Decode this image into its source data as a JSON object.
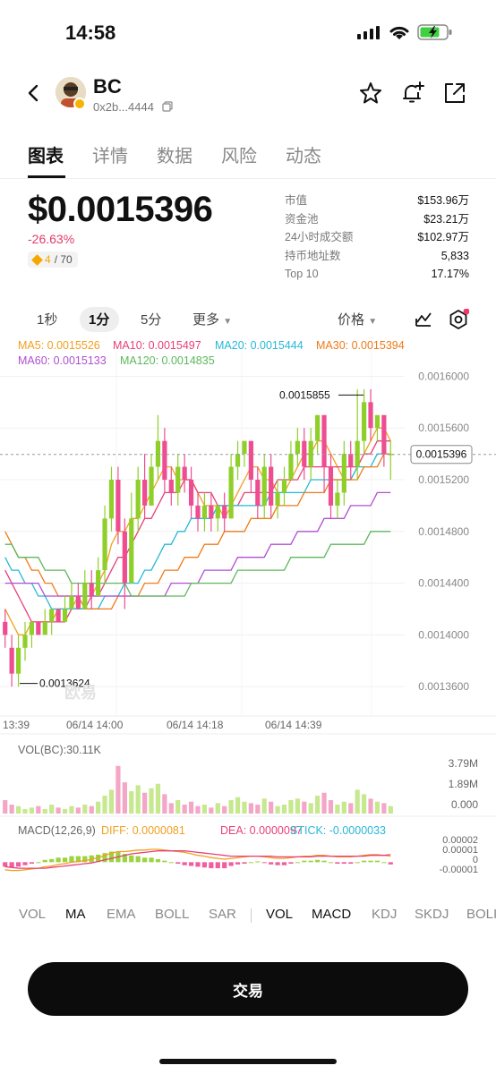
{
  "status": {
    "time": "14:58"
  },
  "header": {
    "token_name": "BC",
    "address": "0x2b...4444"
  },
  "tabs": [
    "图表",
    "详情",
    "数据",
    "风险",
    "动态"
  ],
  "price": {
    "value": "$0.0015396",
    "change": "-26.63%",
    "rank": "4",
    "rank_total": "/ 70"
  },
  "stats": [
    {
      "label": "市值",
      "value": "$153.96万"
    },
    {
      "label": "资金池",
      "value": "$23.21万"
    },
    {
      "label": "24小时成交额",
      "value": "$102.97万"
    },
    {
      "label": "持币地址数",
      "value": "5,833"
    },
    {
      "label": "Top 10",
      "value": "17.17%"
    }
  ],
  "intervals": {
    "i1s": "1秒",
    "i1m": "1分",
    "i5m": "5分",
    "more": "更多",
    "price_type": "价格"
  },
  "chart_data": {
    "type": "candlestick",
    "ma_legend": [
      {
        "label": "MA5: 0.0015526",
        "color": "#f0a020"
      },
      {
        "label": "MA10: 0.0015497",
        "color": "#e8407a"
      },
      {
        "label": "MA20: 0.0015444",
        "color": "#27b8d8"
      },
      {
        "label": "MA30: 0.0015394",
        "color": "#f07a18"
      },
      {
        "label": "MA60: 0.0015133",
        "color": "#b04fd0"
      },
      {
        "label": "MA120: 0.0014835",
        "color": "#5cb85c"
      }
    ],
    "y_ticks": [
      "0.0016000",
      "0.0015600",
      "0.0015200",
      "0.0014800",
      "0.0014400",
      "0.0014000",
      "0.0013600"
    ],
    "ylim": [
      0.00134,
      0.00161
    ],
    "x_ticks": [
      "13:39",
      "06/14 14:00",
      "06/14 14:18",
      "06/14 14:39"
    ],
    "current_price": "0.0015396",
    "high_label": "0.0015855",
    "low_label": "0.0013624",
    "watermark": "欧易",
    "up_color": "#8fcf2a",
    "down_color": "#ee4d92",
    "candles": [
      [
        0.00141,
        0.0014,
        0.00142,
        0.00139
      ],
      [
        0.00139,
        0.00137,
        0.0014,
        0.00136
      ],
      [
        0.00137,
        0.00139,
        0.0014,
        0.00136
      ],
      [
        0.00139,
        0.0014,
        0.00141,
        0.00138
      ],
      [
        0.0014,
        0.00141,
        0.00141,
        0.00139
      ],
      [
        0.00141,
        0.0014,
        0.00141,
        0.0014
      ],
      [
        0.0014,
        0.00141,
        0.00142,
        0.0014
      ],
      [
        0.00141,
        0.00142,
        0.00142,
        0.0014
      ],
      [
        0.00142,
        0.00141,
        0.00142,
        0.00141
      ],
      [
        0.00141,
        0.00142,
        0.00143,
        0.00141
      ],
      [
        0.00142,
        0.00143,
        0.00144,
        0.00142
      ],
      [
        0.00143,
        0.00142,
        0.00144,
        0.00142
      ],
      [
        0.00142,
        0.00144,
        0.00145,
        0.00142
      ],
      [
        0.00144,
        0.00143,
        0.00145,
        0.00142
      ],
      [
        0.00143,
        0.00145,
        0.00146,
        0.00143
      ],
      [
        0.00145,
        0.00149,
        0.0015,
        0.00144
      ],
      [
        0.00149,
        0.00152,
        0.00153,
        0.00148
      ],
      [
        0.00152,
        0.00148,
        0.00153,
        0.00147
      ],
      [
        0.00148,
        0.00144,
        0.00149,
        0.00142
      ],
      [
        0.00144,
        0.00149,
        0.00151,
        0.00144
      ],
      [
        0.00149,
        0.00152,
        0.00153,
        0.00148
      ],
      [
        0.00152,
        0.0015,
        0.00154,
        0.00149
      ],
      [
        0.0015,
        0.00153,
        0.00154,
        0.0015
      ],
      [
        0.00153,
        0.00155,
        0.00157,
        0.00152
      ],
      [
        0.00155,
        0.00152,
        0.00156,
        0.00151
      ],
      [
        0.00152,
        0.00151,
        0.00153,
        0.0015
      ],
      [
        0.00151,
        0.00153,
        0.00154,
        0.0015
      ],
      [
        0.00153,
        0.00152,
        0.00154,
        0.00151
      ],
      [
        0.00152,
        0.0015,
        0.00153,
        0.00149
      ],
      [
        0.0015,
        0.00149,
        0.00151,
        0.00148
      ],
      [
        0.00149,
        0.0015,
        0.00151,
        0.00148
      ],
      [
        0.0015,
        0.00149,
        0.00151,
        0.00148
      ],
      [
        0.00149,
        0.0015,
        0.0015,
        0.00148
      ],
      [
        0.0015,
        0.00149,
        0.00151,
        0.00148
      ],
      [
        0.00149,
        0.00153,
        0.00154,
        0.00149
      ],
      [
        0.00153,
        0.00154,
        0.00155,
        0.00152
      ],
      [
        0.00154,
        0.00155,
        0.00155,
        0.00153
      ],
      [
        0.00155,
        0.00152,
        0.00155,
        0.00151
      ],
      [
        0.00152,
        0.0015,
        0.00153,
        0.00149
      ],
      [
        0.0015,
        0.00153,
        0.00154,
        0.00149
      ],
      [
        0.00153,
        0.0015,
        0.00154,
        0.00149
      ],
      [
        0.0015,
        0.00151,
        0.00152,
        0.00149
      ],
      [
        0.00151,
        0.00152,
        0.00153,
        0.0015
      ],
      [
        0.00152,
        0.00154,
        0.00155,
        0.00152
      ],
      [
        0.00154,
        0.00155,
        0.00156,
        0.00153
      ],
      [
        0.00155,
        0.00153,
        0.00156,
        0.00152
      ],
      [
        0.00153,
        0.00155,
        0.00156,
        0.00152
      ],
      [
        0.00155,
        0.00157,
        0.00157,
        0.00154
      ],
      [
        0.00157,
        0.00153,
        0.00157,
        0.00151
      ],
      [
        0.00153,
        0.0015,
        0.00154,
        0.00149
      ],
      [
        0.0015,
        0.00151,
        0.00152,
        0.00149
      ],
      [
        0.00151,
        0.00154,
        0.00155,
        0.0015
      ],
      [
        0.00154,
        0.00153,
        0.00155,
        0.00152
      ],
      [
        0.00153,
        0.00155,
        0.00159,
        0.00152
      ],
      [
        0.00155,
        0.00158,
        0.00159,
        0.00154
      ],
      [
        0.00158,
        0.00156,
        0.00159,
        0.00155
      ],
      [
        0.00156,
        0.00157,
        0.00157,
        0.00155
      ],
      [
        0.00157,
        0.00154,
        0.00157,
        0.00153
      ],
      [
        0.00154,
        0.00154,
        0.00155,
        0.00152
      ]
    ],
    "ma_lines": [
      {
        "name": "MA5",
        "color": "#f0a020",
        "values": [
          0.00142,
          0.00141,
          0.0014,
          0.0014,
          0.00141,
          0.00141,
          0.00141,
          0.00141,
          0.00142,
          0.00142,
          0.00142,
          0.00143,
          0.00143,
          0.00143,
          0.00144,
          0.00145,
          0.00147,
          0.00148,
          0.00148,
          0.00149,
          0.00149,
          0.0015,
          0.00151,
          0.00152,
          0.00153,
          0.00153,
          0.00152,
          0.00152,
          0.00152,
          0.00151,
          0.0015,
          0.0015,
          0.0015,
          0.00149,
          0.0015,
          0.00151,
          0.00152,
          0.00153,
          0.00153,
          0.00152,
          0.00152,
          0.00151,
          0.00151,
          0.00152,
          0.00153,
          0.00154,
          0.00154,
          0.00155,
          0.00155,
          0.00154,
          0.00153,
          0.00152,
          0.00152,
          0.00153,
          0.00154,
          0.00155,
          0.00156,
          0.00156,
          0.00155
        ]
      },
      {
        "name": "MA10",
        "color": "#e8407a",
        "values": [
          0.00145,
          0.00144,
          0.00143,
          0.00142,
          0.00141,
          0.00141,
          0.00141,
          0.00141,
          0.00141,
          0.00141,
          0.00142,
          0.00142,
          0.00142,
          0.00143,
          0.00143,
          0.00144,
          0.00145,
          0.00146,
          0.00146,
          0.00147,
          0.00148,
          0.00149,
          0.00149,
          0.0015,
          0.00151,
          0.00151,
          0.00151,
          0.00152,
          0.00152,
          0.00151,
          0.00151,
          0.00151,
          0.0015,
          0.0015,
          0.0015,
          0.0015,
          0.00151,
          0.00151,
          0.00151,
          0.00151,
          0.00151,
          0.00152,
          0.00152,
          0.00152,
          0.00152,
          0.00153,
          0.00153,
          0.00153,
          0.00153,
          0.00153,
          0.00153,
          0.00153,
          0.00153,
          0.00153,
          0.00154,
          0.00154,
          0.00155,
          0.00155,
          0.00155
        ]
      },
      {
        "name": "MA20",
        "color": "#27b8d8",
        "values": [
          0.00146,
          0.00145,
          0.00145,
          0.00144,
          0.00144,
          0.00143,
          0.00143,
          0.00142,
          0.00142,
          0.00142,
          0.00142,
          0.00142,
          0.00142,
          0.00142,
          0.00142,
          0.00143,
          0.00143,
          0.00143,
          0.00144,
          0.00144,
          0.00144,
          0.00145,
          0.00145,
          0.00146,
          0.00147,
          0.00147,
          0.00148,
          0.00148,
          0.00149,
          0.00149,
          0.00149,
          0.00149,
          0.0015,
          0.0015,
          0.0015,
          0.0015,
          0.0015,
          0.0015,
          0.0015,
          0.0015,
          0.00151,
          0.00151,
          0.00151,
          0.00151,
          0.00151,
          0.00151,
          0.00152,
          0.00152,
          0.00152,
          0.00152,
          0.00152,
          0.00152,
          0.00152,
          0.00153,
          0.00153,
          0.00153,
          0.00154,
          0.00154,
          0.00154
        ]
      },
      {
        "name": "MA30",
        "color": "#f07a18",
        "values": [
          0.00148,
          0.00147,
          0.00146,
          0.00146,
          0.00145,
          0.00145,
          0.00144,
          0.00144,
          0.00143,
          0.00143,
          0.00143,
          0.00143,
          0.00142,
          0.00142,
          0.00142,
          0.00142,
          0.00142,
          0.00143,
          0.00143,
          0.00143,
          0.00143,
          0.00144,
          0.00144,
          0.00144,
          0.00145,
          0.00145,
          0.00145,
          0.00146,
          0.00146,
          0.00146,
          0.00147,
          0.00147,
          0.00147,
          0.00148,
          0.00148,
          0.00148,
          0.00148,
          0.00149,
          0.00149,
          0.00149,
          0.00149,
          0.0015,
          0.0015,
          0.0015,
          0.0015,
          0.00151,
          0.00151,
          0.00151,
          0.00151,
          0.00152,
          0.00152,
          0.00152,
          0.00152,
          0.00152,
          0.00153,
          0.00153,
          0.00153,
          0.00154,
          0.00154
        ]
      },
      {
        "name": "MA60",
        "color": "#b04fd0",
        "values": [
          0.00144,
          0.00144,
          0.00144,
          0.00144,
          0.00144,
          0.00144,
          0.00143,
          0.00143,
          0.00143,
          0.00143,
          0.00143,
          0.00143,
          0.00143,
          0.00143,
          0.00143,
          0.00143,
          0.00143,
          0.00143,
          0.00143,
          0.00143,
          0.00143,
          0.00143,
          0.00143,
          0.00143,
          0.00143,
          0.00144,
          0.00144,
          0.00144,
          0.00144,
          0.00144,
          0.00145,
          0.00145,
          0.00145,
          0.00145,
          0.00145,
          0.00146,
          0.00146,
          0.00146,
          0.00146,
          0.00146,
          0.00147,
          0.00147,
          0.00147,
          0.00147,
          0.00148,
          0.00148,
          0.00148,
          0.00148,
          0.00149,
          0.00149,
          0.00149,
          0.00149,
          0.0015,
          0.0015,
          0.0015,
          0.0015,
          0.00151,
          0.00151,
          0.00151
        ]
      },
      {
        "name": "MA120",
        "color": "#5cb85c",
        "values": [
          0.00147,
          0.00147,
          0.00146,
          0.00146,
          0.00146,
          0.00146,
          0.00145,
          0.00145,
          0.00145,
          0.00145,
          0.00144,
          0.00144,
          0.00144,
          0.00144,
          0.00144,
          0.00144,
          0.00144,
          0.00144,
          0.00144,
          0.00143,
          0.00143,
          0.00143,
          0.00143,
          0.00143,
          0.00143,
          0.00143,
          0.00143,
          0.00143,
          0.00144,
          0.00144,
          0.00144,
          0.00144,
          0.00144,
          0.00144,
          0.00144,
          0.00145,
          0.00145,
          0.00145,
          0.00145,
          0.00145,
          0.00145,
          0.00145,
          0.00145,
          0.00146,
          0.00146,
          0.00146,
          0.00146,
          0.00146,
          0.00146,
          0.00147,
          0.00147,
          0.00147,
          0.00147,
          0.00147,
          0.00147,
          0.00148,
          0.00148,
          0.00148,
          0.00148
        ]
      }
    ],
    "vol": {
      "label": "VOL(BC):30.11K",
      "y_ticks": [
        "3.79M",
        "1.89M",
        "0.000"
      ],
      "ymax": 3.79,
      "values": [
        0.9,
        0.6,
        0.5,
        0.3,
        0.4,
        0.5,
        0.3,
        0.6,
        0.4,
        0.3,
        0.5,
        0.4,
        0.6,
        0.5,
        0.8,
        1.2,
        1.6,
        3.2,
        2.1,
        1.5,
        1.9,
        1.4,
        1.7,
        2.0,
        1.3,
        0.7,
        0.9,
        0.6,
        0.8,
        0.5,
        0.6,
        0.4,
        0.7,
        0.5,
        0.9,
        1.1,
        0.8,
        0.7,
        0.6,
        1.0,
        0.8,
        0.5,
        0.6,
        0.9,
        1.0,
        0.8,
        0.7,
        1.2,
        1.4,
        0.9,
        0.6,
        0.8,
        0.7,
        1.6,
        1.3,
        1.0,
        0.8,
        0.7,
        0.5
      ]
    },
    "macd": {
      "title": "MACD(12,26,9)",
      "diff": "DIFF: 0.0000081",
      "dea": "DEA: 0.0000097",
      "stick": "STICK: -0.0000033",
      "y_ticks": [
        "0.00002",
        "0.00001",
        "0",
        "-0.00001"
      ],
      "ylim": [
        -1.5e-05,
        3e-05
      ],
      "diff_values": [
        -1e-05,
        -1.1e-05,
        -1.1e-05,
        -1e-05,
        -9e-06,
        -8e-06,
        -6e-06,
        -5e-06,
        -3e-06,
        -2e-06,
        0.0,
        1e-06,
        2e-06,
        4e-06,
        6e-06,
        9e-06,
        1.2e-05,
        1.4e-05,
        1.4e-05,
        1.5e-05,
        1.6e-05,
        1.6e-05,
        1.7e-05,
        1.7e-05,
        1.6e-05,
        1.5e-05,
        1.4e-05,
        1.3e-05,
        1.1e-05,
        9e-06,
        8e-06,
        6e-06,
        5e-06,
        4e-06,
        5e-06,
        6e-06,
        7e-06,
        8e-06,
        8e-06,
        7e-06,
        6e-06,
        5e-06,
        5e-06,
        6e-06,
        7e-06,
        8e-06,
        8e-06,
        9e-06,
        9e-06,
        8e-06,
        7e-06,
        7e-06,
        7e-06,
        8e-06,
        9e-06,
        1e-05,
        1e-05,
        9e-06,
        8e-06
      ],
      "dea_values": [
        -6e-06,
        -7e-06,
        -8e-06,
        -8e-06,
        -8e-06,
        -8e-06,
        -8e-06,
        -7e-06,
        -6e-06,
        -5e-06,
        -4e-06,
        -3e-06,
        -2e-06,
        -1e-06,
        1e-06,
        3e-06,
        5e-06,
        7e-06,
        9e-06,
        1.1e-05,
        1.2e-05,
        1.3e-05,
        1.4e-05,
        1.5e-05,
        1.5e-05,
        1.5e-05,
        1.5e-05,
        1.5e-05,
        1.4e-05,
        1.3e-05,
        1.2e-05,
        1.1e-05,
        1e-05,
        9e-06,
        8e-06,
        8e-06,
        8e-06,
        8e-06,
        8e-06,
        8e-06,
        8e-06,
        7e-06,
        7e-06,
        7e-06,
        7e-06,
        7e-06,
        7e-06,
        8e-06,
        8e-06,
        8e-06,
        8e-06,
        8e-06,
        8e-06,
        8e-06,
        8e-06,
        9e-06,
        9e-06,
        9e-06,
        1e-05
      ],
      "hist_values": [
        -6e-06,
        -7e-06,
        -6e-06,
        -4e-06,
        -2e-06,
        0.0,
        3e-06,
        4e-06,
        6e-06,
        6e-06,
        8e-06,
        8e-06,
        8e-06,
        9e-06,
        1e-05,
        1.2e-05,
        1.4e-05,
        1.4e-05,
        1.1e-05,
        9e-06,
        8e-06,
        6e-06,
        6e-06,
        4e-06,
        2e-06,
        0.0,
        -2e-06,
        -4e-06,
        -5e-06,
        -6e-06,
        -7e-06,
        -8e-06,
        -8e-06,
        -8e-06,
        -5e-06,
        -3e-06,
        -2e-06,
        0.0,
        1e-06,
        -1e-06,
        -3e-06,
        -4e-06,
        -4e-06,
        -2e-06,
        0.0,
        2e-06,
        2e-06,
        3e-06,
        2e-06,
        0.0,
        -2e-06,
        -2e-06,
        -2e-06,
        0.0,
        2e-06,
        2e-06,
        2e-06,
        0.0,
        -3e-06
      ]
    }
  },
  "indicators": {
    "vol": "VOL",
    "ma": "MA",
    "ema": "EMA",
    "boll": "BOLL",
    "sar": "SAR",
    "vol2": "VOL",
    "macd": "MACD",
    "kdj": "KDJ",
    "skdj": "SKDJ",
    "boll2": "BOLI"
  },
  "trade_button": "交易"
}
